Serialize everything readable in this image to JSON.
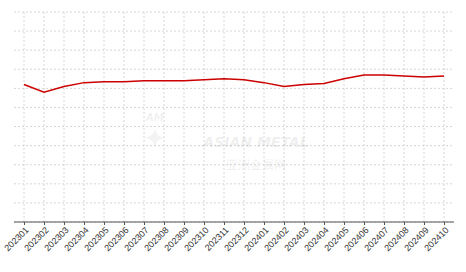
{
  "chart_data": {
    "type": "line",
    "categories": [
      "202301",
      "202302",
      "202303",
      "202304",
      "202305",
      "202306",
      "202307",
      "202308",
      "202309",
      "202310",
      "202311",
      "202312",
      "202401",
      "202402",
      "202403",
      "202404",
      "202405",
      "202406",
      "202407",
      "202408",
      "202409",
      "202410"
    ],
    "values": [
      72,
      68,
      71,
      73,
      73.5,
      73.5,
      74,
      74,
      74,
      74.5,
      75,
      74.5,
      73,
      71,
      72,
      72.5,
      75,
      77,
      77,
      76.5,
      76,
      76.5
    ],
    "color": "#cc0000",
    "ylim": [
      0,
      110
    ],
    "yticks": [
      0,
      10,
      20,
      30,
      40,
      50,
      60,
      70,
      80,
      90,
      100,
      110
    ],
    "grid": true,
    "tick_labels": "x",
    "annotations": [
      "ASIAN  METAL",
      "亚洲金属网",
      "✦",
      "AM"
    ]
  }
}
